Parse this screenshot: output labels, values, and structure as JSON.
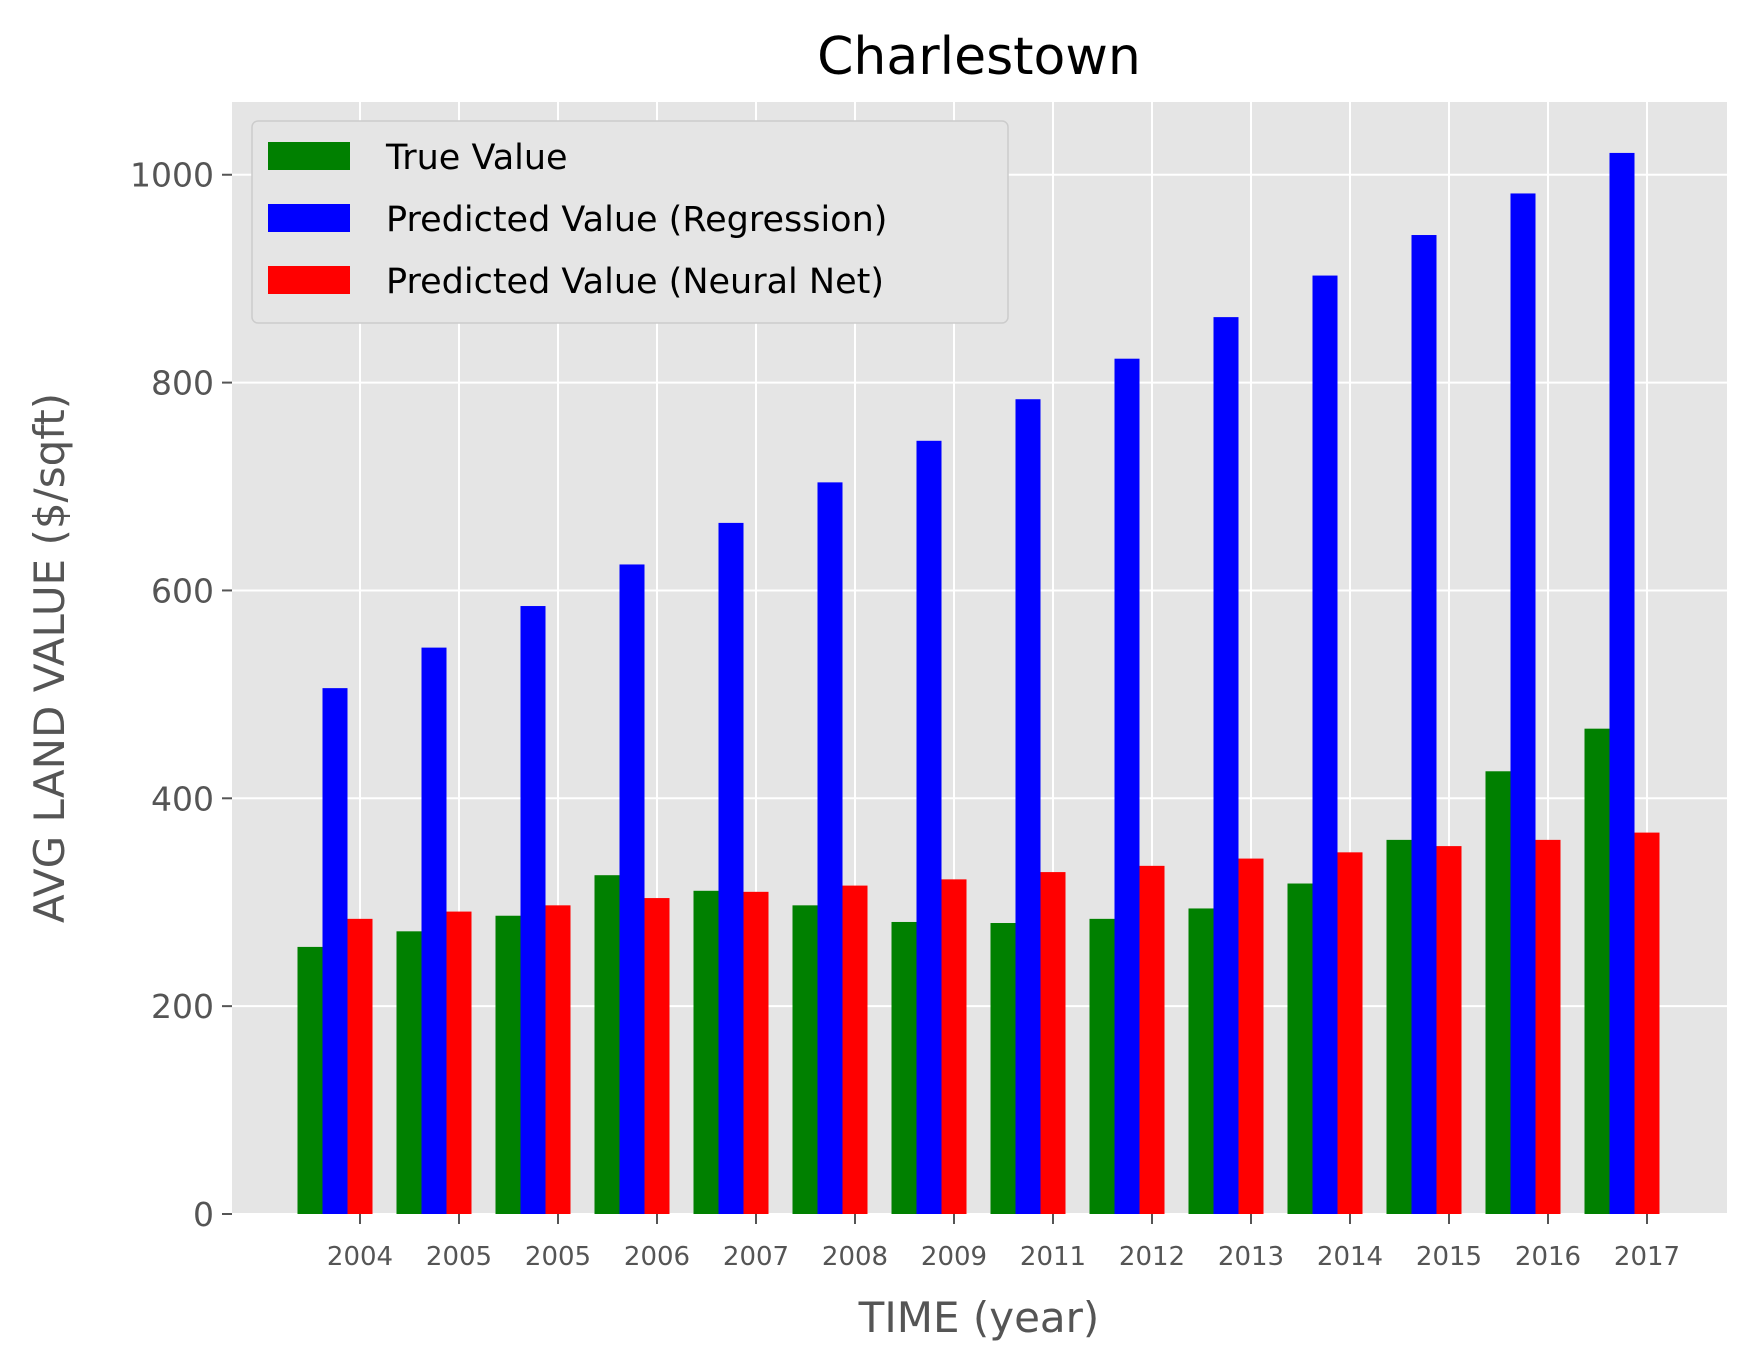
{
  "chart_data": {
    "type": "bar",
    "title": "Charlestown",
    "xlabel": "TIME (year)",
    "ylabel": "AVG LAND VALUE ($/sqft)",
    "ylim": [
      0,
      1070
    ],
    "yticks": [
      0,
      200,
      400,
      600,
      800,
      1000
    ],
    "grid": true,
    "legend_position": "top-left",
    "categories": [
      "2004",
      "2005",
      "2005",
      "2006",
      "2007",
      "2008",
      "2009",
      "2011",
      "2012",
      "2013",
      "2014",
      "2015",
      "2016",
      "2017"
    ],
    "series": [
      {
        "name": "True Value",
        "color": "#008000",
        "values": [
          257,
          272,
          287,
          326,
          311,
          297,
          281,
          280,
          284,
          294,
          318,
          360,
          426,
          467
        ]
      },
      {
        "name": "Predicted Value (Regression)",
        "color": "#0000ff",
        "values": [
          506,
          545,
          585,
          625,
          665,
          704,
          744,
          784,
          823,
          863,
          903,
          942,
          982,
          1021
        ]
      },
      {
        "name": "Predicted Value (Neural Net)",
        "color": "#ff0000",
        "values": [
          284,
          291,
          297,
          304,
          310,
          316,
          322,
          329,
          335,
          342,
          348,
          354,
          360,
          367
        ]
      }
    ]
  }
}
